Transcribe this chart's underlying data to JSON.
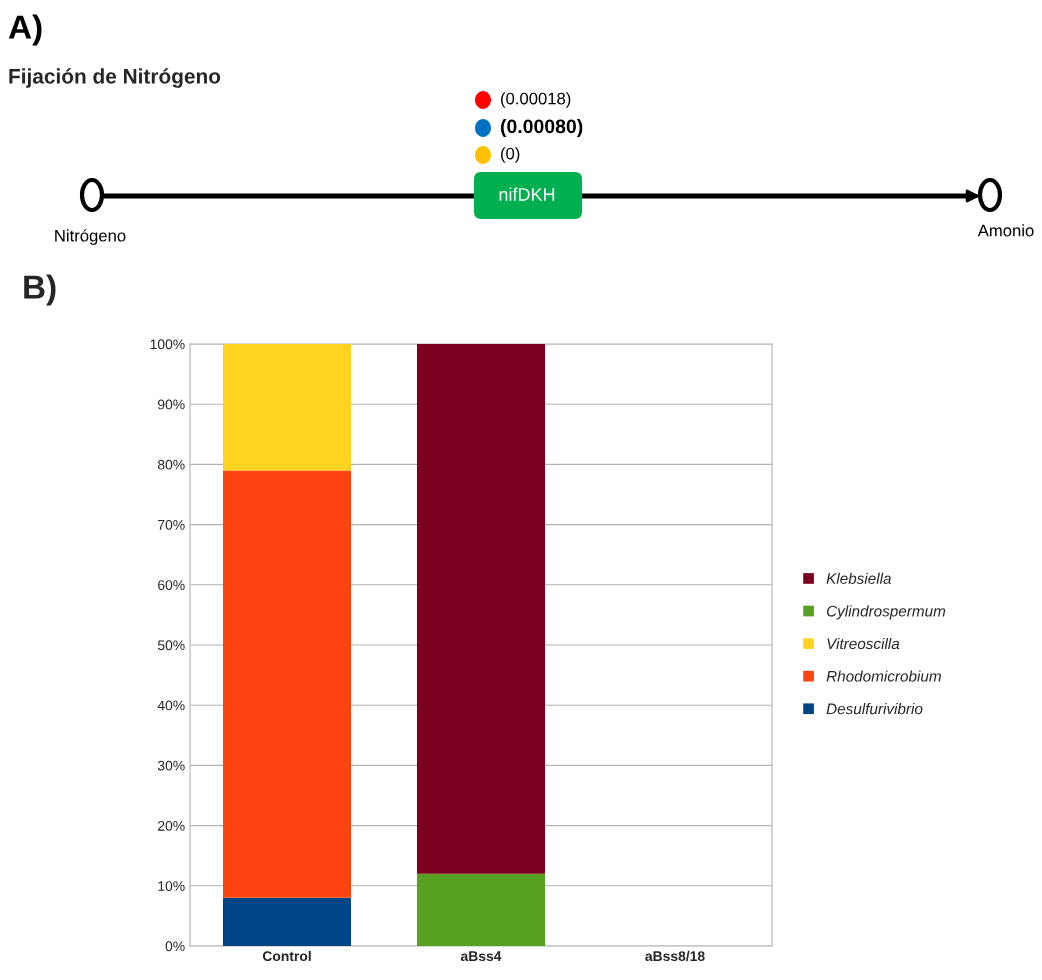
{
  "chart_data": [
    {
      "type": "other",
      "title": "Fijación de Nitrógeno",
      "annotations": [
        "A)",
        "(0.00018)",
        "(0.00080)",
        "(0)",
        "nifDKH",
        "Nitrógeno",
        "Amonio"
      ]
    },
    {
      "type": "bar",
      "stacked": true,
      "annotations": [
        "B)"
      ],
      "categories": [
        "Control",
        "aBss4",
        "aBss8/18"
      ],
      "series": [
        {
          "name": "Desulfurivibrio",
          "color": "#004586",
          "values": [
            8,
            null,
            null
          ]
        },
        {
          "name": "Rhodomicrobium",
          "color": "#ff4411",
          "values": [
            71,
            null,
            null
          ]
        },
        {
          "name": "Vitreoscilla",
          "color": "#ffd320",
          "values": [
            21,
            null,
            null
          ]
        },
        {
          "name": "Cylindrospermum",
          "color": "#58a021",
          "values": [
            null,
            12,
            null
          ]
        },
        {
          "name": "Klebsiella",
          "color": "#7b0020",
          "values": [
            null,
            88,
            null
          ]
        }
      ],
      "ylim": [
        0,
        100
      ],
      "yticks": [
        {
          "value": 0,
          "label": "0%"
        },
        {
          "value": 10,
          "label": "10%"
        },
        {
          "value": 20,
          "label": "20%"
        },
        {
          "value": 30,
          "label": "30%"
        },
        {
          "value": 40,
          "label": "40%"
        },
        {
          "value": 50,
          "label": "50%"
        },
        {
          "value": 60,
          "label": "60%"
        },
        {
          "value": 70,
          "label": "70%"
        },
        {
          "value": 80,
          "label": "80%"
        },
        {
          "value": 90,
          "label": "90%"
        },
        {
          "value": 100,
          "label": "100%"
        }
      ],
      "grid": "y",
      "legend": "right"
    }
  ]
}
